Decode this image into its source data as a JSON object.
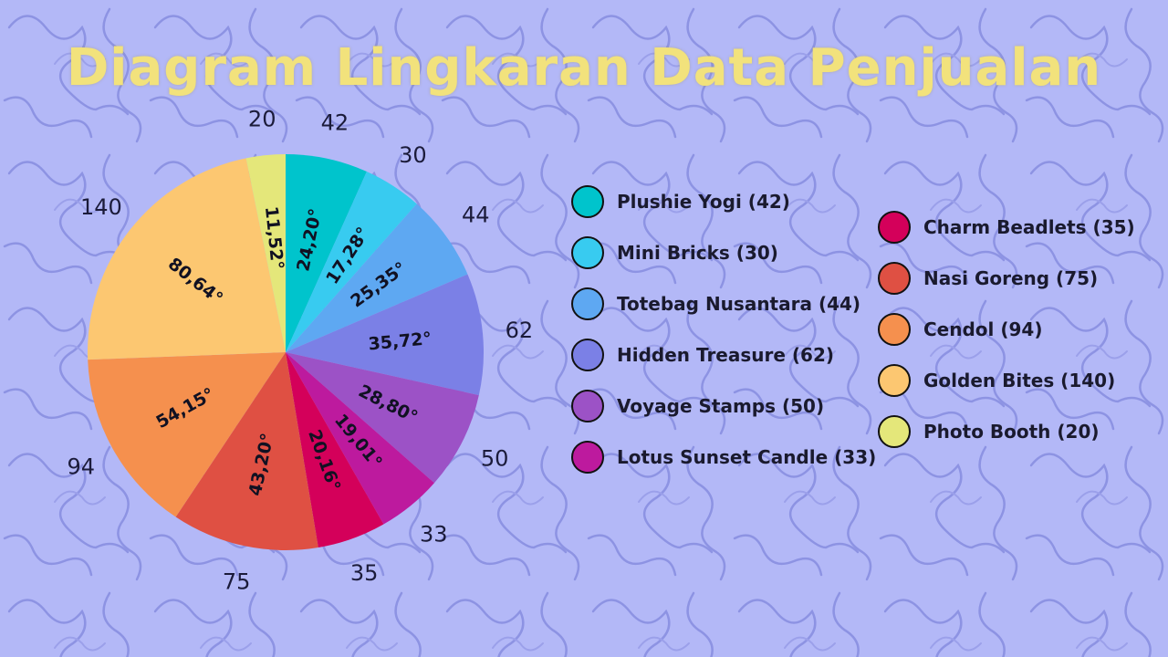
{
  "title": "Diagram Lingkaran Data Penjualan",
  "chart_data": {
    "type": "pie",
    "title": "Diagram Lingkaran Data Penjualan",
    "start": "top",
    "direction": "clockwise",
    "slices": [
      {
        "label": "Plushie Yogi",
        "value": 42,
        "angle_label": "24,20°",
        "color": "#00c4cc"
      },
      {
        "label": "Mini Bricks",
        "value": 30,
        "angle_label": "17,28°",
        "color": "#38cbf0"
      },
      {
        "label": "Totebag Nusantara",
        "value": 44,
        "angle_label": "25,35°",
        "color": "#5ea8f2"
      },
      {
        "label": "Hidden Treasure",
        "value": 62,
        "angle_label": "35,72°",
        "color": "#7b80e6"
      },
      {
        "label": "Voyage Stamps",
        "value": 50,
        "angle_label": "28,80°",
        "color": "#9c52c6"
      },
      {
        "label": "Lotus Sunset Candle",
        "value": 33,
        "angle_label": "19,01°",
        "color": "#bd1a9e"
      },
      {
        "label": "Charm Beadlets",
        "value": 35,
        "angle_label": "20,16°",
        "color": "#d4005a"
      },
      {
        "label": "Nasi Goreng",
        "value": 75,
        "angle_label": "43,20°",
        "color": "#df5043"
      },
      {
        "label": "Cendol",
        "value": 94,
        "angle_label": "54,15°",
        "color": "#f5904e"
      },
      {
        "label": "Golden Bites",
        "value": 140,
        "angle_label": "80,64°",
        "color": "#fcc771"
      },
      {
        "label": "Photo Booth",
        "value": 20,
        "angle_label": "11,52°",
        "color": "#e4e77a"
      }
    ]
  },
  "legend": {
    "left": [
      {
        "label": "Plushie Yogi (42)",
        "color": "#00c4cc"
      },
      {
        "label": "Mini Bricks (30)",
        "color": "#38cbf0"
      },
      {
        "label": "Totebag Nusantara (44)",
        "color": "#5ea8f2"
      },
      {
        "label": "Hidden Treasure (62)",
        "color": "#7b80e6"
      },
      {
        "label": "Voyage Stamps (50)",
        "color": "#9c52c6"
      },
      {
        "label": "Lotus Sunset Candle (33)",
        "color": "#bd1a9e"
      }
    ],
    "right": [
      {
        "label": "Charm Beadlets (35)",
        "color": "#d4005a"
      },
      {
        "label": "Nasi Goreng (75)",
        "color": "#df5043"
      },
      {
        "label": "Cendol (94)",
        "color": "#f5904e"
      },
      {
        "label": "Golden Bites (140)",
        "color": "#fcc771"
      },
      {
        "label": "Photo Booth (20)",
        "color": "#e4e77a"
      }
    ]
  },
  "background_color": "#b3b8f7",
  "title_color": "#f2e27c"
}
